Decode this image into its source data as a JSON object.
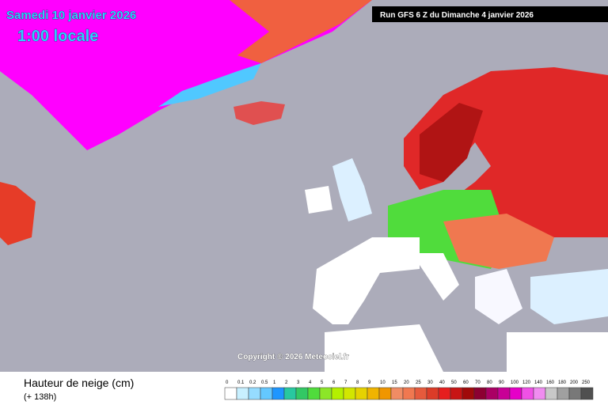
{
  "header": {
    "date": "Samedi 10 janvier 2026",
    "time": "1:00 locale",
    "run": "Run GFS 6 Z du Dimanche 4 janvier 2026"
  },
  "copyright": "Copyright © 2026 Meteociel.fr",
  "legend": {
    "title": "Hauteur de neige (cm)",
    "lead": "(+ 138h)",
    "labels": [
      "0",
      "0.1",
      "0.2",
      "0.5",
      "1",
      "2",
      "3",
      "4",
      "5",
      "6",
      "7",
      "8",
      "9",
      "10",
      "15",
      "20",
      "25",
      "30",
      "40",
      "50",
      "60",
      "70",
      "80",
      "90",
      "100",
      "120",
      "140",
      "160",
      "180",
      "200",
      "250"
    ],
    "colors": [
      "#ffffff",
      "#c8f0ff",
      "#96dcff",
      "#64c8ff",
      "#1e96ff",
      "#28c8a0",
      "#32c864",
      "#50dc3c",
      "#8ce628",
      "#b4f000",
      "#d2e600",
      "#e6d200",
      "#f0b400",
      "#f09600",
      "#f08c64",
      "#f07850",
      "#e65a3c",
      "#dc3c28",
      "#e61e1e",
      "#c81414",
      "#a00a0a",
      "#8c0032",
      "#aa0064",
      "#c80096",
      "#e600c8",
      "#f050e6",
      "#f08cf0",
      "#c8c8c8",
      "#a0a0a0",
      "#787878",
      "#505050"
    ]
  }
}
